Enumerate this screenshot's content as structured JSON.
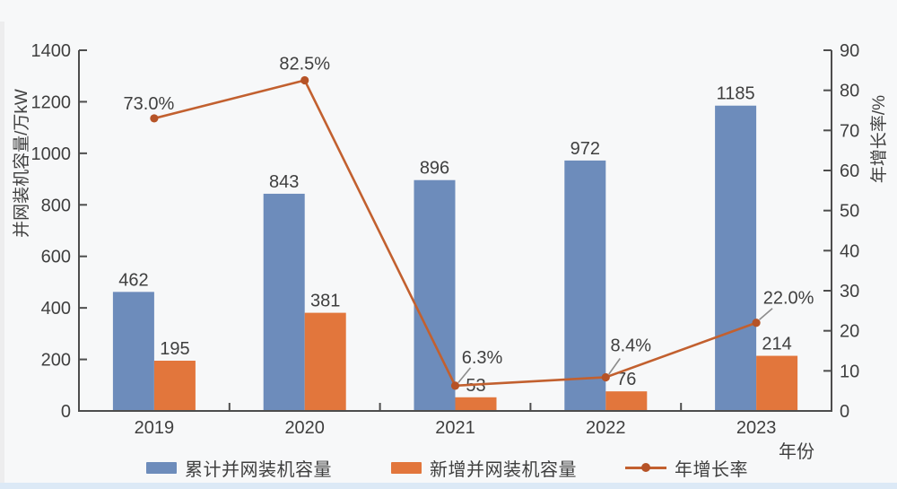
{
  "page": {
    "background": "#f7f8f9",
    "bottom_strip_color": "#dce9f6"
  },
  "chart_data": {
    "type": "bar",
    "subtype": "grouped-bars-with-line",
    "title": "",
    "categories": [
      "2019",
      "2020",
      "2021",
      "2022",
      "2023"
    ],
    "series": [
      {
        "name": "累计并网装机容量",
        "kind": "bar",
        "axis": "left",
        "color": "#6d8cbb",
        "values": [
          462,
          843,
          896,
          972,
          1185
        ],
        "value_labels": [
          "462",
          "843",
          "896",
          "972",
          "1185"
        ]
      },
      {
        "name": "新增并网装机容量",
        "kind": "bar",
        "axis": "left",
        "color": "#e2763c",
        "values": [
          195,
          381,
          53,
          76,
          214
        ],
        "value_labels": [
          "195",
          "381",
          "53",
          "76",
          "214"
        ]
      },
      {
        "name": "年增长率",
        "kind": "line",
        "axis": "right",
        "color": "#c2602f",
        "marker_color": "#b65327",
        "values": [
          73.0,
          82.5,
          6.3,
          8.4,
          22.0
        ],
        "point_labels": [
          "73.0%",
          "82.5%",
          "6.3%",
          "8.4%",
          "22.0%"
        ]
      }
    ],
    "left_axis": {
      "title": "并网装机容量/万kW",
      "min": 0,
      "max": 1400,
      "step": 200,
      "ticks": [
        0,
        200,
        400,
        600,
        800,
        1000,
        1200,
        1400
      ]
    },
    "right_axis": {
      "title": "年增长率/%",
      "min": 0,
      "max": 90,
      "step": 10,
      "ticks": [
        0,
        10,
        20,
        30,
        40,
        50,
        60,
        70,
        80,
        90
      ]
    },
    "x_axis": {
      "title": "年份"
    },
    "legend_position": "bottom",
    "grid": false,
    "style": {
      "text_color": "#3f3f3f",
      "axis_color": "#4d4d4d",
      "leader_line_color": "#8c8c8c"
    }
  }
}
